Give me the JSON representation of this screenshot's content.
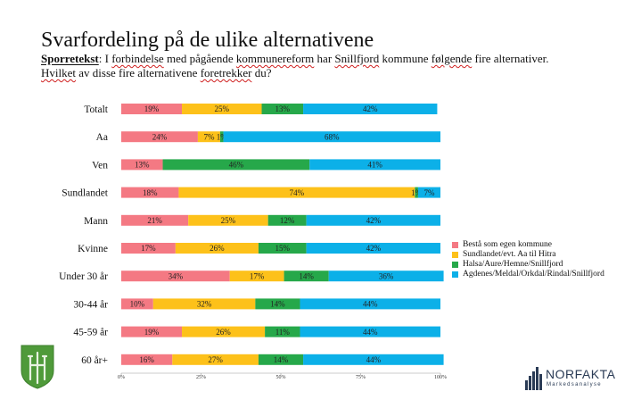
{
  "title": "Svarfordeling på de ulike alternativene",
  "question": {
    "label": "Sporretekst",
    "part1": ": I ",
    "w1": "forbindelse",
    "part2": " med pågående ",
    "w2": "kommunereform",
    "part3": " har ",
    "w3": "Snillfjord",
    "part4": " kommune ",
    "w4": "følgende",
    "part5": " fire alternativer. ",
    "w5": "Hvilket",
    "part6": " av disse fire alternativene ",
    "w6": "foretrekker",
    "part7": " du?"
  },
  "colors": [
    "#f47983",
    "#fdc11a",
    "#26a84a",
    "#0cb0e8"
  ],
  "brand": {
    "name": "NORFAKTA",
    "sub": "Markedsanalyse"
  },
  "chart_data": {
    "type": "bar",
    "orientation": "horizontal",
    "stacked": true,
    "title": "Svarfordeling på de ulike alternativene",
    "categories": [
      "Totalt",
      "Aa",
      "Ven",
      "Sundlandet",
      "Mann",
      "Kvinne",
      "Under 30 år",
      "30-44 år",
      "45-59 år",
      "60 år+"
    ],
    "series": [
      {
        "name": "Bestå som egen kommune",
        "values": [
          19,
          24,
          13,
          18,
          21,
          17,
          34,
          10,
          19,
          16
        ],
        "labels": [
          "19%",
          "24%",
          "13%",
          "18%",
          "21%",
          "17%",
          "34%",
          "10%",
          "19%",
          "16%"
        ]
      },
      {
        "name": "Sundlandet/evt. Aa til Hitra",
        "values": [
          25,
          7,
          0,
          74,
          25,
          26,
          17,
          32,
          26,
          27
        ],
        "labels": [
          "25%",
          "7%",
          "",
          "74%",
          "25%",
          "26%",
          "17%",
          "32%",
          "26%",
          "27%"
        ]
      },
      {
        "name": "Halsa/Aure/Hemne/Snillfjord",
        "values": [
          13,
          1,
          46,
          1,
          12,
          15,
          14,
          14,
          11,
          14
        ],
        "labels": [
          "13%",
          "1%",
          "46%",
          "1%",
          "12%",
          "15%",
          "14%",
          "14%",
          "11%",
          "14%"
        ]
      },
      {
        "name": "Agdenes/Meldal/Orkdal/Rindal/Snillfjord",
        "values": [
          42,
          68,
          41,
          7,
          42,
          42,
          36,
          44,
          44,
          44
        ],
        "labels": [
          "42%",
          "68%",
          "41%",
          "7%",
          "42%",
          "42%",
          "36%",
          "44%",
          "44%",
          "44%"
        ]
      }
    ],
    "xlim": [
      0,
      100
    ],
    "xticks": [
      "0%",
      "25%",
      "50%",
      "75%",
      "100%"
    ],
    "legend_position": "right"
  }
}
